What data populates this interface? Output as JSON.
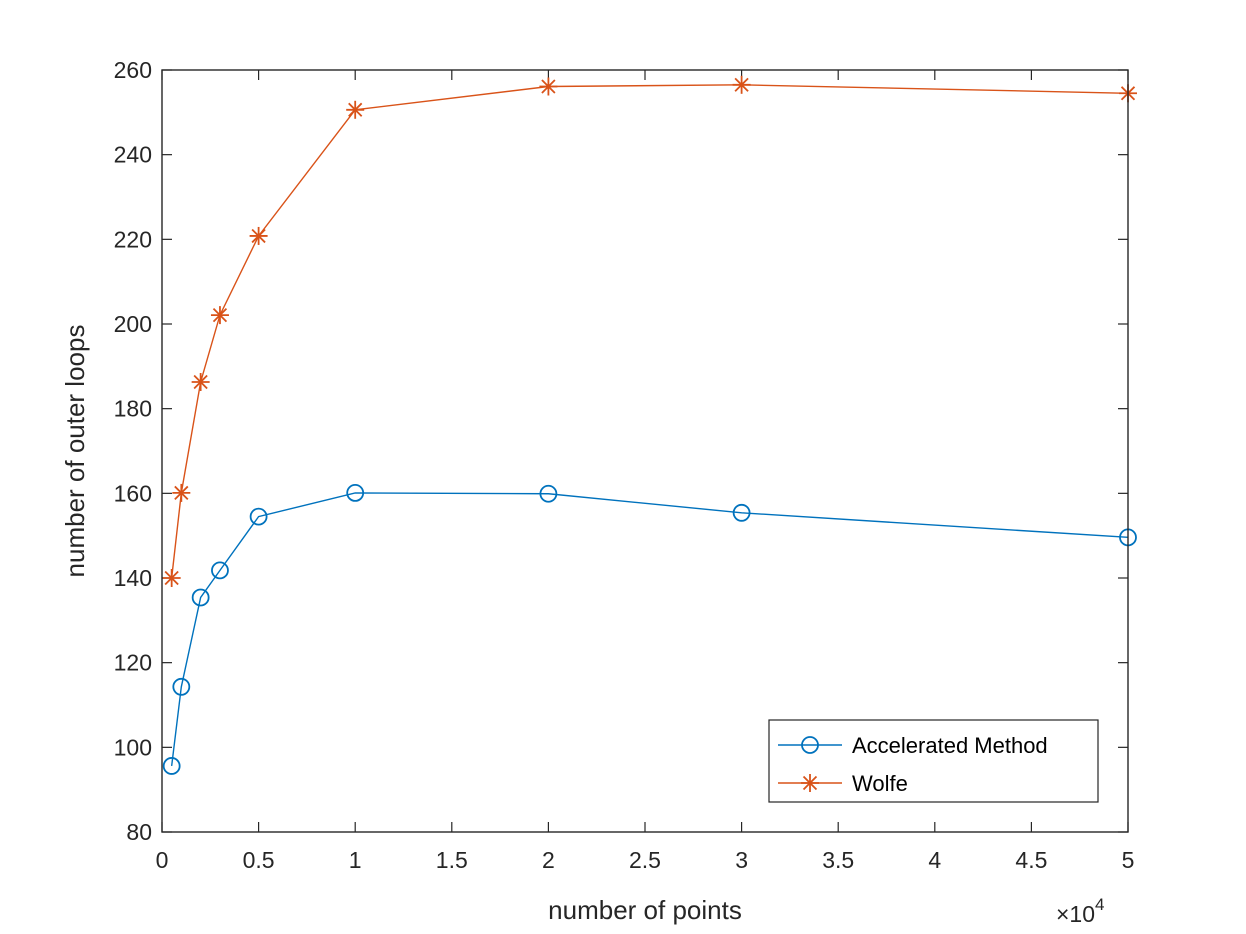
{
  "chart_data": {
    "type": "line",
    "xlabel": "number of points",
    "ylabel": "number of outer loops",
    "x_multiplier_label": "×10",
    "x_multiplier_exponent": "4",
    "xlim": [
      0,
      5
    ],
    "ylim": [
      80,
      260
    ],
    "xticks": [
      0,
      0.5,
      1,
      1.5,
      2,
      2.5,
      3,
      3.5,
      4,
      4.5,
      5
    ],
    "xtick_labels": [
      "0",
      "0.5",
      "1",
      "1.5",
      "2",
      "2.5",
      "3",
      "3.5",
      "4",
      "4.5",
      "5"
    ],
    "yticks": [
      80,
      100,
      120,
      140,
      160,
      180,
      200,
      220,
      240,
      260
    ],
    "ytick_labels": [
      "80",
      "100",
      "120",
      "140",
      "160",
      "180",
      "200",
      "220",
      "240",
      "260"
    ],
    "x": [
      0.05,
      0.1,
      0.2,
      0.3,
      0.5,
      1,
      2,
      3,
      5
    ],
    "series": [
      {
        "name": "Accelerated Method",
        "marker": "circle",
        "color": "#0072BD",
        "values": [
          95.6,
          114.3,
          135.4,
          141.8,
          154.5,
          160.1,
          159.9,
          155.4,
          149.6
        ]
      },
      {
        "name": "Wolfe",
        "marker": "asterisk",
        "color": "#D95319",
        "values": [
          140.0,
          160.1,
          186.3,
          202.1,
          220.8,
          250.6,
          256.1,
          256.5,
          254.5
        ]
      }
    ],
    "legend_position": "bottom-right",
    "grid": false
  }
}
